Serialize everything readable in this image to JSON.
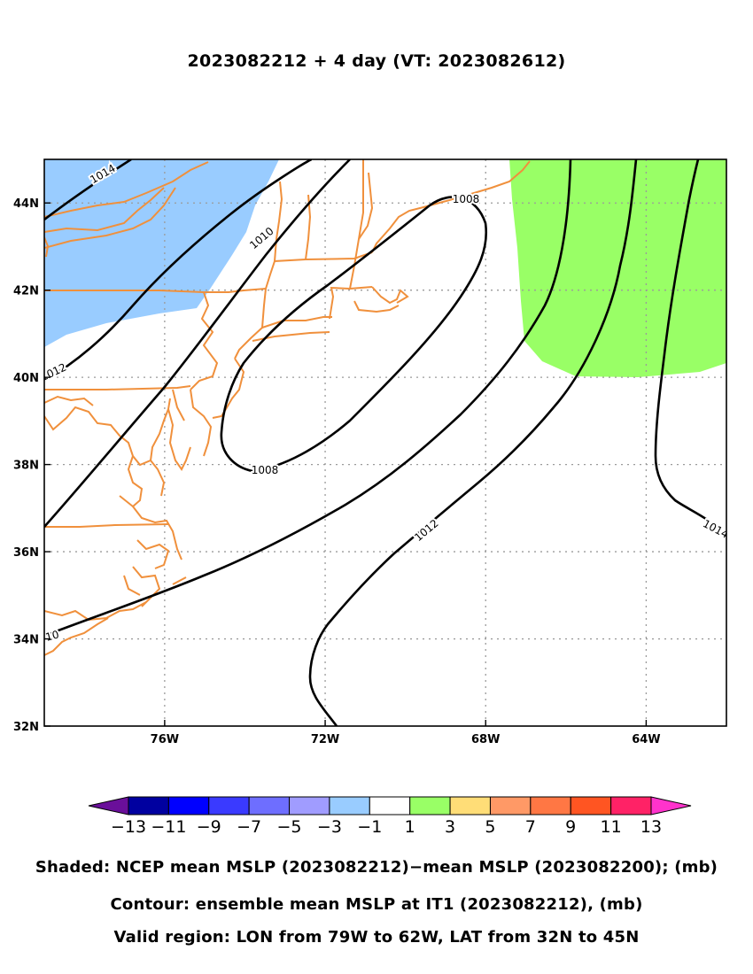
{
  "title": "2023082212 + 4 day (VT: 2023082612)",
  "colors": {
    "coast": "#f0903c",
    "contour": "#000000",
    "grid": "#9a9a9a",
    "neg_shade": "#99ccff",
    "pos_shade": "#99ff66"
  },
  "map": {
    "lon_range": [
      -79,
      -62
    ],
    "lat_range": [
      32,
      45
    ],
    "lon_ticks": [
      {
        "value": -76,
        "label": "76W"
      },
      {
        "value": -72,
        "label": "72W"
      },
      {
        "value": -68,
        "label": "68W"
      },
      {
        "value": -64,
        "label": "64W"
      }
    ],
    "lat_ticks": [
      {
        "value": 32,
        "label": "32N"
      },
      {
        "value": 34,
        "label": "34N"
      },
      {
        "value": 36,
        "label": "36N"
      },
      {
        "value": 38,
        "label": "38N"
      },
      {
        "value": 40,
        "label": "40N"
      },
      {
        "value": 42,
        "label": "42N"
      },
      {
        "value": 44,
        "label": "44N"
      }
    ],
    "contour_labels": [
      "1014",
      "1010",
      "1012",
      "1008",
      "1008",
      "1012",
      "10",
      "1014"
    ],
    "shaded_regions": [
      {
        "name": "negative-anomaly-region",
        "category": "-3 to -1"
      },
      {
        "name": "positive-anomaly-region",
        "category": "1 to 3"
      }
    ]
  },
  "colorbar": {
    "colors": [
      "#6a0f9a",
      "#0000a0",
      "#0000ff",
      "#3a3aff",
      "#6e6eff",
      "#a09cff",
      "#99ccff",
      "#ffffff",
      "#99ff66",
      "#ffdd77",
      "#ff9966",
      "#ff7744",
      "#ff5522",
      "#ff2266",
      "#ff33cc"
    ],
    "labels": [
      "−13",
      "−11",
      "−9",
      "−7",
      "−5",
      "−3",
      "−1",
      "1",
      "3",
      "5",
      "7",
      "9",
      "11",
      "13"
    ]
  },
  "captions": {
    "shaded": "Shaded: NCEP mean MSLP (2023082212)−mean MSLP (2023082200); (mb)",
    "contour": "Contour: ensemble mean MSLP at IT1 (2023082212), (mb)",
    "region": "Valid region: LON from 79W to 62W, LAT from 32N to 45N"
  }
}
